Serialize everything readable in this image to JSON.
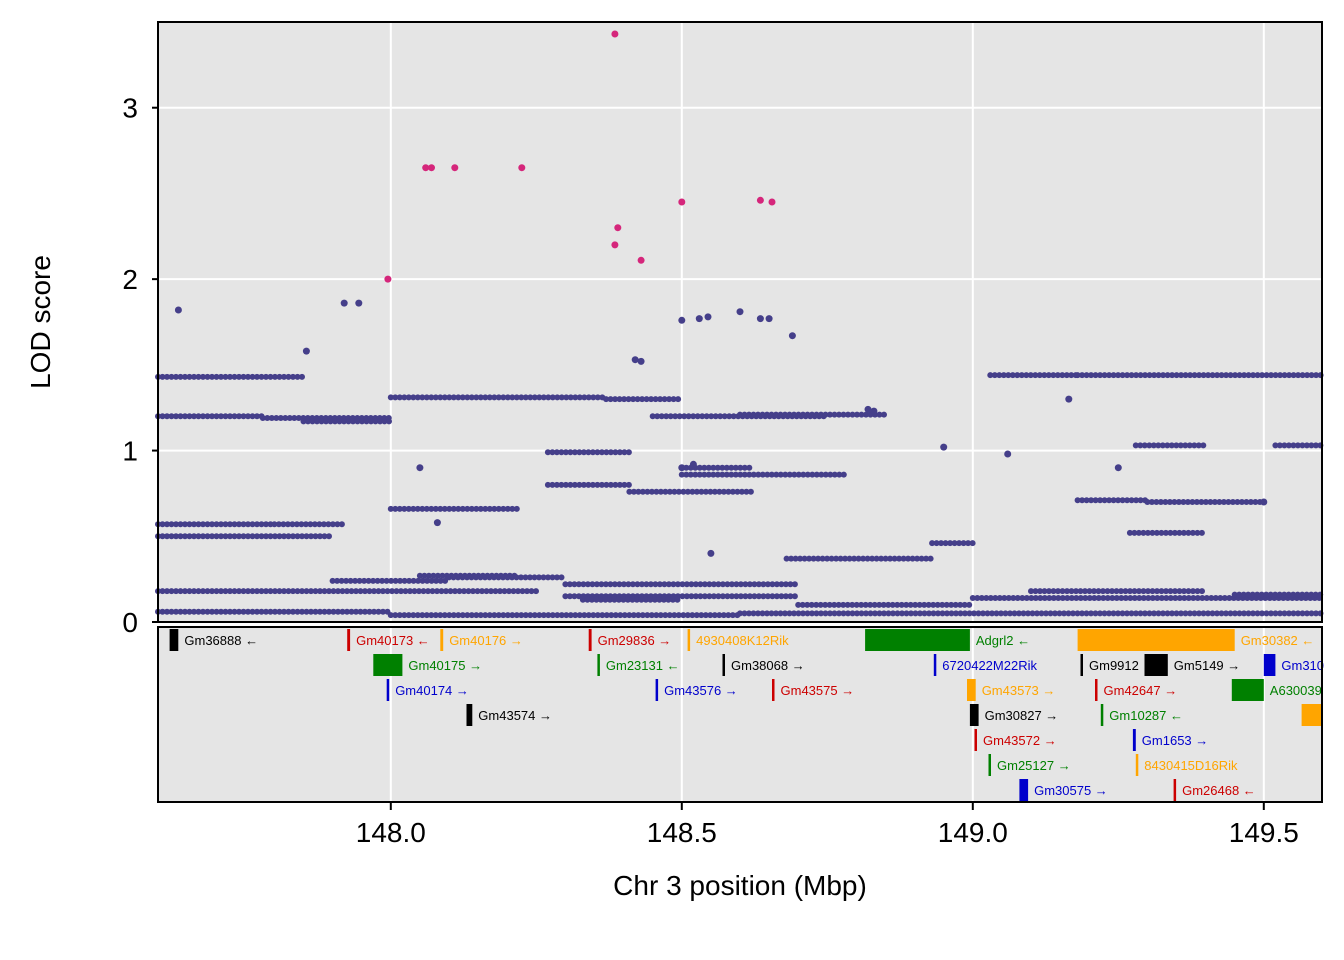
{
  "chart_data": {
    "type": "scatter",
    "title": "",
    "xlabel": "Chr 3 position (Mbp)",
    "ylabel": "LOD score",
    "xlim": [
      147.6,
      149.6
    ],
    "ylim": [
      0,
      3.5
    ],
    "xticks": [
      "148.0",
      "148.5",
      "149.0",
      "149.5"
    ],
    "xtick_values": [
      148.0,
      148.5,
      149.0,
      149.5
    ],
    "yticks": [
      "0",
      "1",
      "2",
      "3"
    ],
    "ytick_values": [
      0,
      1,
      2,
      3
    ],
    "grid": true,
    "colors": {
      "background": "#e5e5e5",
      "grid": "#ffffff",
      "points": "#453f8a",
      "highlight": "#d5267b",
      "gene_black": "#000000",
      "gene_red": "#cc0000",
      "gene_orange": "#ffa500",
      "gene_green": "#008000",
      "gene_blue": "#0000cc"
    },
    "series": [
      {
        "color": "highlight",
        "points": [
          [
            148.385,
            3.43
          ],
          [
            148.06,
            2.65
          ],
          [
            148.07,
            2.65
          ],
          [
            148.11,
            2.65
          ],
          [
            148.225,
            2.65
          ],
          [
            148.5,
            2.45
          ],
          [
            148.635,
            2.46
          ],
          [
            148.655,
            2.45
          ],
          [
            148.39,
            2.3
          ],
          [
            148.385,
            2.2
          ],
          [
            148.43,
            2.11
          ],
          [
            147.995,
            2.0
          ]
        ]
      },
      {
        "color": "points",
        "points": [
          [
            147.635,
            1.82
          ],
          [
            147.92,
            1.86
          ],
          [
            147.945,
            1.86
          ],
          [
            147.855,
            1.58
          ],
          [
            148.5,
            1.76
          ],
          [
            148.53,
            1.77
          ],
          [
            148.545,
            1.78
          ],
          [
            148.6,
            1.81
          ],
          [
            148.635,
            1.77
          ],
          [
            148.65,
            1.77
          ],
          [
            148.69,
            1.67
          ],
          [
            148.42,
            1.53
          ],
          [
            148.43,
            1.52
          ],
          [
            149.165,
            1.3
          ],
          [
            148.82,
            1.24
          ],
          [
            148.83,
            1.23
          ],
          [
            148.05,
            0.9
          ],
          [
            148.5,
            0.9
          ],
          [
            148.52,
            0.92
          ],
          [
            148.95,
            1.02
          ],
          [
            149.06,
            0.98
          ],
          [
            149.25,
            0.9
          ],
          [
            149.5,
            0.7
          ],
          [
            148.08,
            0.58
          ],
          [
            148.55,
            0.4
          ]
        ]
      }
    ],
    "bands": [
      {
        "x_start": 147.6,
        "x_end": 147.78,
        "y": 1.2
      },
      {
        "x_start": 147.78,
        "x_end": 148.0,
        "y": 1.19
      },
      {
        "x_start": 147.6,
        "x_end": 147.85,
        "y": 1.43
      },
      {
        "x_start": 147.85,
        "x_end": 148.0,
        "y": 1.17
      },
      {
        "x_start": 148.0,
        "x_end": 148.37,
        "y": 1.31
      },
      {
        "x_start": 148.37,
        "x_end": 148.5,
        "y": 1.3
      },
      {
        "x_start": 148.45,
        "x_end": 148.75,
        "y": 1.2
      },
      {
        "x_start": 148.6,
        "x_end": 148.85,
        "y": 1.21
      },
      {
        "x_start": 148.27,
        "x_end": 148.41,
        "y": 0.99
      },
      {
        "x_start": 148.27,
        "x_end": 148.41,
        "y": 0.8
      },
      {
        "x_start": 148.41,
        "x_end": 148.62,
        "y": 0.76
      },
      {
        "x_start": 148.5,
        "x_end": 148.62,
        "y": 0.9
      },
      {
        "x_start": 148.5,
        "x_end": 148.78,
        "y": 0.86
      },
      {
        "x_start": 148.0,
        "x_end": 148.22,
        "y": 0.66
      },
      {
        "x_start": 147.6,
        "x_end": 147.8,
        "y": 0.57
      },
      {
        "x_start": 147.8,
        "x_end": 147.92,
        "y": 0.57
      },
      {
        "x_start": 147.6,
        "x_end": 147.9,
        "y": 0.5
      },
      {
        "x_start": 148.68,
        "x_end": 148.93,
        "y": 0.37
      },
      {
        "x_start": 148.93,
        "x_end": 149.0,
        "y": 0.46
      },
      {
        "x_start": 149.03,
        "x_end": 149.18,
        "y": 1.44
      },
      {
        "x_start": 149.18,
        "x_end": 149.6,
        "y": 1.44
      },
      {
        "x_start": 149.28,
        "x_end": 149.4,
        "y": 1.03
      },
      {
        "x_start": 149.52,
        "x_end": 149.6,
        "y": 1.03
      },
      {
        "x_start": 149.18,
        "x_end": 149.3,
        "y": 0.71
      },
      {
        "x_start": 149.3,
        "x_end": 149.5,
        "y": 0.7
      },
      {
        "x_start": 149.27,
        "x_end": 149.4,
        "y": 0.52
      },
      {
        "x_start": 147.6,
        "x_end": 148.25,
        "y": 0.18
      },
      {
        "x_start": 148.3,
        "x_end": 148.7,
        "y": 0.15
      },
      {
        "x_start": 148.7,
        "x_end": 149.0,
        "y": 0.1
      },
      {
        "x_start": 147.6,
        "x_end": 148.0,
        "y": 0.06
      },
      {
        "x_start": 148.0,
        "x_end": 148.6,
        "y": 0.04
      },
      {
        "x_start": 148.6,
        "x_end": 149.6,
        "y": 0.05
      },
      {
        "x_start": 148.33,
        "x_end": 148.5,
        "y": 0.13
      },
      {
        "x_start": 149.0,
        "x_end": 149.6,
        "y": 0.14
      },
      {
        "x_start": 148.3,
        "x_end": 148.7,
        "y": 0.22
      },
      {
        "x_start": 148.05,
        "x_end": 148.22,
        "y": 0.27
      },
      {
        "x_start": 147.9,
        "x_end": 148.1,
        "y": 0.24
      },
      {
        "x_start": 148.1,
        "x_end": 148.3,
        "y": 0.26
      },
      {
        "x_start": 149.1,
        "x_end": 149.4,
        "y": 0.18
      },
      {
        "x_start": 149.45,
        "x_end": 149.6,
        "y": 0.16
      }
    ],
    "genes": [
      {
        "name": "Gm36888",
        "arrow": "←",
        "start": 147.62,
        "end": 147.635,
        "row": 0,
        "color": "gene_black"
      },
      {
        "name": "Gm40173",
        "arrow": "←",
        "start": 147.925,
        "end": 147.93,
        "row": 0,
        "color": "gene_red"
      },
      {
        "name": "Gm40176",
        "arrow": "→",
        "start": 148.085,
        "end": 148.09,
        "row": 0,
        "color": "gene_orange"
      },
      {
        "name": "Gm29836",
        "arrow": "→",
        "start": 148.34,
        "end": 148.345,
        "row": 0,
        "color": "gene_red"
      },
      {
        "name": "4930408K12Rik",
        "arrow": "",
        "start": 148.51,
        "end": 148.512,
        "row": 0,
        "color": "gene_orange"
      },
      {
        "name": "Adgrl2",
        "arrow": "←",
        "start": 148.815,
        "end": 148.995,
        "row": 0,
        "color": "gene_green"
      },
      {
        "name": "Gm30382",
        "arrow": "←",
        "start": 149.18,
        "end": 149.45,
        "row": 0,
        "color": "gene_orange"
      },
      {
        "name": "Gm40175",
        "arrow": "→",
        "start": 147.97,
        "end": 148.02,
        "row": 1,
        "color": "gene_green"
      },
      {
        "name": "Gm23131",
        "arrow": "←",
        "start": 148.355,
        "end": 148.358,
        "row": 1,
        "color": "gene_green"
      },
      {
        "name": "Gm38068",
        "arrow": "→",
        "start": 148.57,
        "end": 148.573,
        "row": 1,
        "color": "gene_black"
      },
      {
        "name": "6720422M22Rik",
        "arrow": "",
        "start": 148.933,
        "end": 148.936,
        "row": 1,
        "color": "gene_blue"
      },
      {
        "name": "Gm9912",
        "arrow": "",
        "start": 149.185,
        "end": 149.188,
        "row": 1,
        "color": "gene_black"
      },
      {
        "name": "Gm5149",
        "arrow": "→",
        "start": 149.295,
        "end": 149.335,
        "row": 1,
        "color": "gene_black"
      },
      {
        "name": "Gm310",
        "arrow": "",
        "start": 149.5,
        "end": 149.52,
        "row": 1,
        "color": "gene_blue"
      },
      {
        "name": "Gm40174",
        "arrow": "→",
        "start": 147.993,
        "end": 147.996,
        "row": 2,
        "color": "gene_blue"
      },
      {
        "name": "Gm43576",
        "arrow": "→",
        "start": 148.455,
        "end": 148.458,
        "row": 2,
        "color": "gene_blue"
      },
      {
        "name": "Gm43575",
        "arrow": "→",
        "start": 148.655,
        "end": 148.658,
        "row": 2,
        "color": "gene_red"
      },
      {
        "name": "Gm43573",
        "arrow": "→",
        "start": 148.99,
        "end": 149.005,
        "row": 2,
        "color": "gene_orange"
      },
      {
        "name": "Gm42647",
        "arrow": "→",
        "start": 149.21,
        "end": 149.213,
        "row": 2,
        "color": "gene_red"
      },
      {
        "name": "A630039",
        "arrow": "",
        "start": 149.445,
        "end": 149.5,
        "row": 2,
        "color": "gene_green"
      },
      {
        "name": "Gm43574",
        "arrow": "→",
        "start": 148.13,
        "end": 148.14,
        "row": 3,
        "color": "gene_black"
      },
      {
        "name": "Gm30827",
        "arrow": "→",
        "start": 148.995,
        "end": 149.01,
        "row": 3,
        "color": "gene_black"
      },
      {
        "name": "Gm10287",
        "arrow": "←",
        "start": 149.22,
        "end": 149.224,
        "row": 3,
        "color": "gene_green"
      },
      {
        "name": "",
        "arrow": "",
        "start": 149.565,
        "end": 149.6,
        "row": 3,
        "color": "gene_orange"
      },
      {
        "name": "Gm43572",
        "arrow": "→",
        "start": 149.003,
        "end": 149.006,
        "row": 4,
        "color": "gene_red"
      },
      {
        "name": "Gm1653",
        "arrow": "→",
        "start": 149.275,
        "end": 149.28,
        "row": 4,
        "color": "gene_blue"
      },
      {
        "name": "Gm25127",
        "arrow": "→",
        "start": 149.027,
        "end": 149.03,
        "row": 5,
        "color": "gene_green"
      },
      {
        "name": "8430415D16Rik",
        "arrow": "",
        "start": 149.28,
        "end": 149.283,
        "row": 5,
        "color": "gene_orange"
      },
      {
        "name": "Gm30575",
        "arrow": "→",
        "start": 149.08,
        "end": 149.095,
        "row": 6,
        "color": "gene_blue"
      },
      {
        "name": "Gm26468",
        "arrow": "←",
        "start": 149.345,
        "end": 149.348,
        "row": 6,
        "color": "gene_red"
      }
    ]
  }
}
